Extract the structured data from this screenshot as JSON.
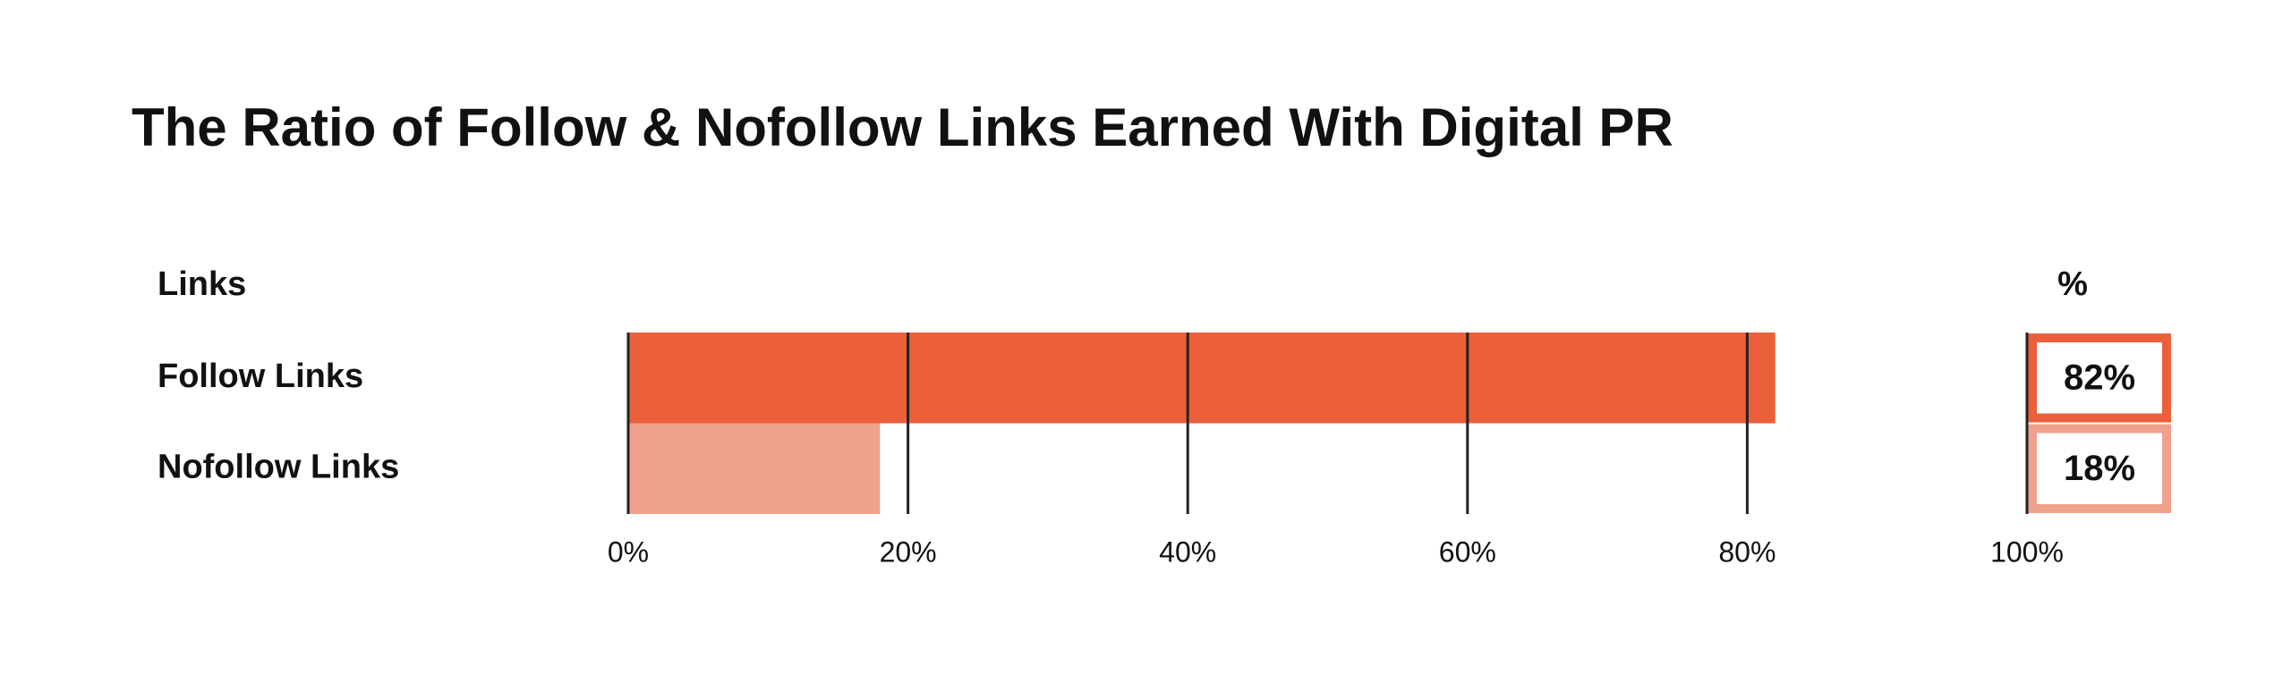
{
  "chart_data": {
    "type": "bar",
    "orientation": "horizontal",
    "title": "The Ratio of Follow & Nofollow Links Earned With Digital PR",
    "category_header": "Links",
    "value_header": "%",
    "categories": [
      "Follow Links",
      "Nofollow Links"
    ],
    "values": [
      82,
      18
    ],
    "value_labels": [
      "82%",
      "18%"
    ],
    "colors": [
      "#eb5f3a",
      "#f0a18c"
    ],
    "xlim": [
      0,
      100
    ],
    "xticks": [
      {
        "value": 0,
        "label": "0%"
      },
      {
        "value": 20,
        "label": "20%"
      },
      {
        "value": 40,
        "label": "40%"
      },
      {
        "value": 60,
        "label": "60%"
      },
      {
        "value": 80,
        "label": "80%"
      },
      {
        "value": 100,
        "label": "100%"
      }
    ],
    "grid": true
  }
}
